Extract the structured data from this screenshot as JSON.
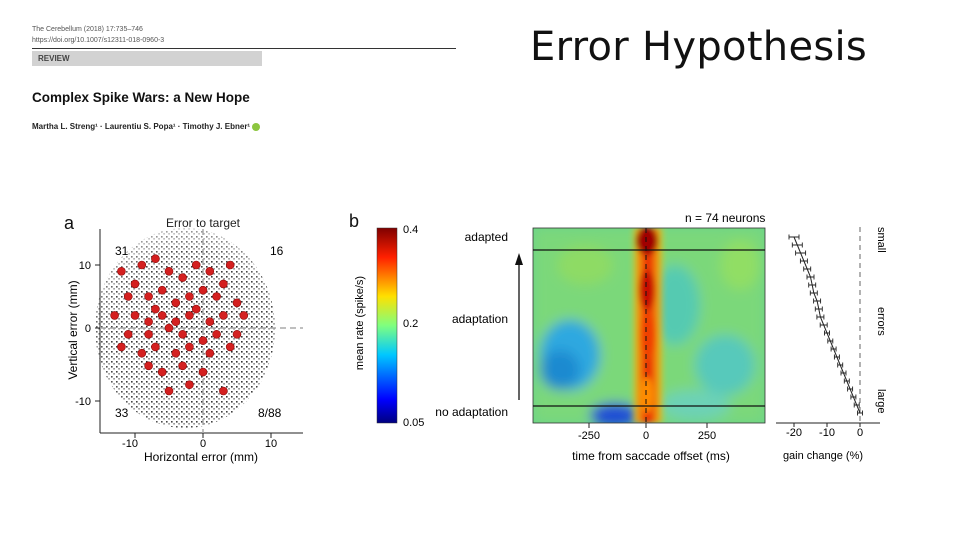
{
  "header": {
    "journal_line1": "The Cerebellum (2018) 17:735–746",
    "journal_line2": "https://doi.org/10.1007/s12311-018-0960-3",
    "section_label": "REVIEW",
    "paper_title": "Complex Spike Wars: a New Hope",
    "authors": "Martha L. Streng¹ · Laurentiu S. Popa¹ · Timothy J. Ebner¹"
  },
  "slide": {
    "title": "Error Hypothesis"
  },
  "colors": {
    "red_dot": "#d42020",
    "black_dot": "#111111",
    "dash": "#aaaaaa"
  },
  "chart_data": [
    {
      "type": "scatter",
      "panel_label": "a",
      "title": "Error to target",
      "xlabel": "Horizontal error (mm)",
      "ylabel": "Vertical error (mm)",
      "xticks": [
        "-10",
        "0",
        "10"
      ],
      "yticks": [
        "10",
        "0",
        "-10"
      ],
      "xlim": [
        -20,
        15
      ],
      "ylim": [
        -15,
        15
      ],
      "quadrant_counts": {
        "top_left": "31",
        "top_right": "16",
        "bottom_left": "33",
        "bottom_right": "8/88"
      },
      "series": [
        {
          "name": "",
          "color": "#d42020",
          "points": [
            [
              -12,
              9
            ],
            [
              -9,
              10
            ],
            [
              -7,
              11
            ],
            [
              -5,
              9
            ],
            [
              -3,
              8
            ],
            [
              -1,
              10
            ],
            [
              1,
              9
            ],
            [
              4,
              10
            ],
            [
              -11,
              5
            ],
            [
              -8,
              5
            ],
            [
              -6,
              6
            ],
            [
              -4,
              4
            ],
            [
              -2,
              5
            ],
            [
              0,
              6
            ],
            [
              2,
              5
            ],
            [
              5,
              4
            ],
            [
              -13,
              2
            ],
            [
              -10,
              2
            ],
            [
              -8,
              1
            ],
            [
              -6,
              2
            ],
            [
              -4,
              1
            ],
            [
              -2,
              2
            ],
            [
              1,
              1
            ],
            [
              3,
              2
            ],
            [
              6,
              2
            ],
            [
              -11,
              -1
            ],
            [
              -8,
              -1
            ],
            [
              -5,
              0
            ],
            [
              -3,
              -1
            ],
            [
              0,
              -2
            ],
            [
              2,
              -1
            ],
            [
              5,
              -1
            ],
            [
              -12,
              -3
            ],
            [
              -9,
              -4
            ],
            [
              -7,
              -3
            ],
            [
              -4,
              -4
            ],
            [
              -2,
              -3
            ],
            [
              1,
              -4
            ],
            [
              4,
              -3
            ],
            [
              -8,
              -6
            ],
            [
              -6,
              -7
            ],
            [
              -3,
              -6
            ],
            [
              0,
              -7
            ],
            [
              -5,
              -10
            ],
            [
              -2,
              -9
            ],
            [
              3,
              -10
            ],
            [
              -10,
              7
            ],
            [
              -7,
              3
            ],
            [
              -1,
              3
            ],
            [
              3,
              7
            ]
          ]
        },
        {
          "name": "",
          "color": "#111111",
          "points": []
        }
      ]
    },
    {
      "type": "heatmap",
      "panel_label": "b",
      "annotation": "n = 74 neurons",
      "xlabel": "time from saccade offset (ms)",
      "xticks": [
        "-250",
        "0",
        "250"
      ],
      "xlim": [
        -450,
        480
      ],
      "row_labels": {
        "top": "adapted",
        "middle": "adaptation",
        "bottom": "no adaptation"
      },
      "colorbar": {
        "label": "mean rate (spike/s)",
        "ticks": [
          "0.4",
          "0.2",
          "0.05"
        ],
        "min": 0.05,
        "max": 0.4
      }
    },
    {
      "type": "line",
      "xlabel": "gain change (%)",
      "xticks": [
        "-20",
        "-10",
        "0"
      ],
      "xlim": [
        -25,
        5
      ],
      "right_labels": {
        "top": "small",
        "middle": "errors",
        "bottom": "large"
      },
      "series": [
        {
          "name": "",
          "x": [
            -20,
            -19,
            -18,
            -17,
            -16,
            -15,
            -14.5,
            -14,
            -13,
            -12.5,
            -12,
            -11,
            -10,
            -9,
            -8,
            -7,
            -6,
            -5,
            -4,
            -3,
            -2,
            -1,
            0
          ],
          "y": [
            0,
            1,
            2,
            3,
            4,
            5,
            6,
            7,
            8,
            9,
            10,
            11,
            12,
            13,
            14,
            15,
            16,
            17,
            18,
            19,
            20,
            21,
            22
          ]
        }
      ]
    }
  ]
}
